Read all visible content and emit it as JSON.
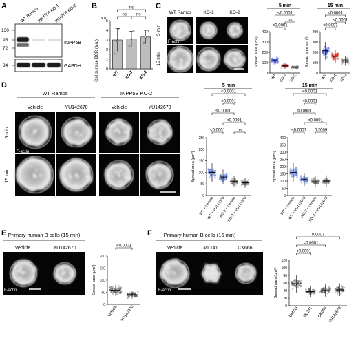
{
  "panels": {
    "A": {
      "letter": "A",
      "lanes": [
        "WT Ramos",
        "INPP5B KO-1",
        "INPP5B KO-2"
      ],
      "markers": [
        "130",
        "95",
        "72",
        "34"
      ],
      "blots": [
        "INPP5B",
        "GAPDH"
      ]
    },
    "B": {
      "letter": "B",
      "ylabel": "Cell surface BCR (a.u.)",
      "scale": "x10",
      "yticks": [
        "0",
        "1",
        "2",
        "3",
        "4",
        "5"
      ],
      "categories": [
        "WT",
        "KO-1",
        "KO-2"
      ],
      "values": [
        3.0,
        3.1,
        3.3
      ],
      "errors": [
        1.2,
        0.8,
        0.7
      ],
      "points": [
        [
          1.7,
          2.9,
          4.1
        ],
        [
          2.3,
          3.1,
          3.9
        ],
        [
          2.7,
          3.3,
          3.9
        ]
      ],
      "sig": [
        "ns",
        "ns",
        "ns"
      ]
    },
    "C": {
      "letter": "C",
      "columns": [
        "WT Ramos",
        "KO-1",
        "KO-2"
      ],
      "rows": [
        "5 min",
        "15 min"
      ],
      "stain": "F-actin",
      "charts": [
        {
          "title": "5 min",
          "yticks": [
            "0",
            "100",
            "200",
            "300",
            "400"
          ],
          "ylabel": "Spread area (µm²)",
          "categories": [
            "WT",
            "KO-1",
            "KO-2"
          ],
          "medians": [
            120,
            68,
            55
          ],
          "sig": [
            "<0.0001",
            "<0.0001",
            "ns"
          ],
          "colors": [
            "#2c3fd9",
            "#d62b1e",
            "#6c6c6c"
          ]
        },
        {
          "title": "15 min",
          "yticks": [
            "0",
            "100",
            "200",
            "300",
            "400"
          ],
          "ylabel": "Spread area (µm²)",
          "categories": [
            "WT",
            "KO-1",
            "KO-2"
          ],
          "medians": [
            215,
            160,
            118
          ],
          "sig": [
            "<0.0001",
            "<0.0001",
            "<0.0001"
          ],
          "colors": [
            "#2c3fd9",
            "#d62b1e",
            "#6c6c6c"
          ]
        }
      ]
    },
    "D": {
      "letter": "D",
      "groups": [
        "WT Ramos",
        "INPP5B KO-2"
      ],
      "columns": [
        "Vehicle",
        "YU142670",
        "Vehicle",
        "YU142670"
      ],
      "rows": [
        "5 min",
        "15 min"
      ],
      "stain": "F-actin",
      "charts": [
        {
          "title": "5 min",
          "yticks": [
            "0",
            "50",
            "100",
            "150",
            "200",
            "250"
          ],
          "ylabel": "Spread area (µm²)",
          "categories": [
            "WT + Vehicle",
            "WT + YU142670",
            "KO-2 + Vehicle",
            "KO-2 + YU142670"
          ],
          "medians": [
            100,
            80,
            60,
            55
          ],
          "sig": [
            "<0.0001",
            "<0.0001",
            "<0.0001",
            "<0.0001",
            "<0.0001",
            "ns"
          ]
        },
        {
          "title": "15 min",
          "yticks": [
            "0",
            "50",
            "100",
            "150",
            "200",
            "250",
            "300",
            "350",
            "400"
          ],
          "ylabel": "Spread area (µm²)",
          "categories": [
            "WT + Vehicle",
            "WT + YU142670",
            "KO-2 + Vehicle",
            "KO-2 + YU142670"
          ],
          "medians": [
            160,
            110,
            95,
            100
          ],
          "sig": [
            "<0.0001",
            "<0.0001",
            "<0.0001",
            "<0.0001",
            "<0.0001",
            "0.2009"
          ]
        }
      ]
    },
    "E": {
      "letter": "E",
      "title": "Primary human B cells (15 min)",
      "columns": [
        "Vehicle",
        "YU142670"
      ],
      "stain": "F-actin",
      "chart": {
        "yticks": [
          "0",
          "50",
          "100",
          "150",
          "200"
        ],
        "ylabel": "Spread area (µm²)",
        "categories": [
          "Vehicle",
          "YU142670"
        ],
        "medians": [
          58,
          40
        ],
        "sig": [
          "<0.0001"
        ]
      }
    },
    "F": {
      "letter": "F",
      "title": "Primary human B cells (15 min)",
      "columns": [
        "Vehicle",
        "ML141",
        "CK666"
      ],
      "stain": "F-actin",
      "chart": {
        "yticks": [
          "0",
          "20",
          "40",
          "60",
          "80",
          "100",
          "120"
        ],
        "ylabel": "Spread area (µm²)",
        "categories": [
          "DMSO",
          "ML141",
          "CK666",
          "YU142670"
        ],
        "medians": [
          58,
          37,
          40,
          42
        ],
        "sig": [
          "<0.0001",
          "<0.0001",
          "0.0007"
        ]
      }
    }
  },
  "chart_data": [
    {
      "type": "bar",
      "title": "",
      "ylabel": "Cell surface BCR (a.u.)",
      "categories": [
        "WT",
        "KO-1",
        "KO-2"
      ],
      "values": [
        3.0,
        3.1,
        3.3
      ],
      "ylim": [
        0,
        5
      ]
    },
    {
      "type": "scatter",
      "title": "5 min",
      "ylabel": "Spread area (µm²)",
      "categories": [
        "WT",
        "KO-1",
        "KO-2"
      ],
      "medians": [
        120,
        68,
        55
      ],
      "ylim": [
        0,
        400
      ]
    },
    {
      "type": "scatter",
      "title": "15 min",
      "ylabel": "Spread area (µm²)",
      "categories": [
        "WT",
        "KO-1",
        "KO-2"
      ],
      "medians": [
        215,
        160,
        118
      ],
      "ylim": [
        0,
        400
      ]
    },
    {
      "type": "scatter",
      "title": "5 min",
      "ylabel": "Spread area (µm²)",
      "categories": [
        "WT + Vehicle",
        "WT + YU142670",
        "KO-2 + Vehicle",
        "KO-2 + YU142670"
      ],
      "medians": [
        100,
        80,
        60,
        55
      ],
      "ylim": [
        0,
        250
      ]
    },
    {
      "type": "scatter",
      "title": "15 min",
      "ylabel": "Spread area (µm²)",
      "categories": [
        "WT + Vehicle",
        "WT + YU142670",
        "KO-2 + Vehicle",
        "KO-2 + YU142670"
      ],
      "medians": [
        160,
        110,
        95,
        100
      ],
      "ylim": [
        0,
        400
      ]
    },
    {
      "type": "scatter",
      "title": "",
      "ylabel": "Spread area (µm²)",
      "categories": [
        "Vehicle",
        "YU142670"
      ],
      "medians": [
        58,
        40
      ],
      "ylim": [
        0,
        200
      ]
    },
    {
      "type": "scatter",
      "title": "",
      "ylabel": "Spread area (µm²)",
      "categories": [
        "DMSO",
        "ML141",
        "CK666",
        "YU142670"
      ],
      "medians": [
        58,
        37,
        40,
        42
      ],
      "ylim": [
        0,
        120
      ]
    }
  ]
}
